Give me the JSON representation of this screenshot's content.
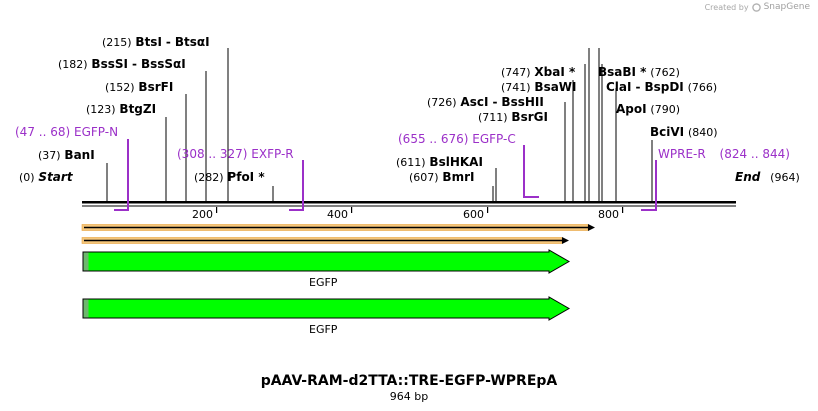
{
  "credit": {
    "prefix": "Created by",
    "brand": "SnapGene"
  },
  "sites": [
    {
      "pos": "(215)",
      "name": "BtsI",
      "name2": "BtsαI"
    },
    {
      "pos": "(182)",
      "name": "BssSI",
      "name2": "BssSαI"
    },
    {
      "pos": "(152)",
      "name": "BsrFI"
    },
    {
      "pos": "(123)",
      "name": "BtgZI"
    },
    {
      "pos": "(37)",
      "name": "BanI"
    },
    {
      "pos": "(0)",
      "name": "Start"
    },
    {
      "pos": "(282)",
      "name": "PfoI *"
    },
    {
      "pos": "(611)",
      "name": "BslHKAI"
    },
    {
      "pos": "(607)",
      "name": "BmrI"
    },
    {
      "pos": "(711)",
      "name": "BsrGI"
    },
    {
      "pos": "(726)",
      "name": "AscI",
      "name2": "BssHII"
    },
    {
      "pos": "(741)",
      "name": "BsaWI"
    },
    {
      "pos": "(747)",
      "name": "XbaI *"
    },
    {
      "name": "BsaBI *",
      "pos": "(762)"
    },
    {
      "name": "ClaI",
      "name2": "BspDI",
      "pos": "(766)"
    },
    {
      "name": "ApoI",
      "pos": "(790)"
    },
    {
      "name": "BciVI",
      "pos": "(840)"
    },
    {
      "name": "End",
      "pos": "(964)"
    }
  ],
  "primers": [
    {
      "range": "(47 .. 68)",
      "name": "EGFP-N"
    },
    {
      "range": "(308 .. 327)",
      "name": "EXFP-R"
    },
    {
      "range": "(655 .. 676)",
      "name": "EGFP-C"
    },
    {
      "name": "WPRE-R",
      "range": "(824 .. 844)"
    }
  ],
  "ruler": {
    "ticks": [
      "200",
      "400",
      "600",
      "800"
    ]
  },
  "features": [
    {
      "label": "EGFP"
    },
    {
      "label": "EGFP"
    }
  ],
  "plasmid": {
    "name": "pAAV-RAM-d2TTA::TRE-EGFP-WPREpA",
    "length": "964 bp"
  },
  "colors": {
    "feature": "#00ff00",
    "orf_fill": "#f5c67a",
    "primer": "#9b30c8"
  }
}
